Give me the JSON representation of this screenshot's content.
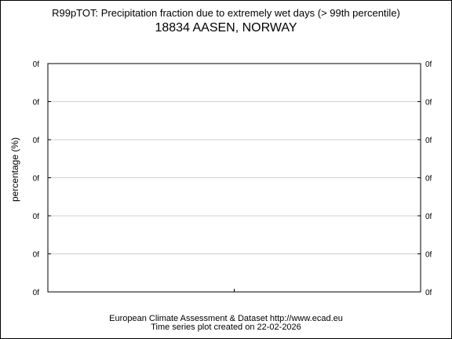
{
  "chart_data": {
    "type": "line",
    "title": "R99pTOT: Precipitation fraction due to extremely wet days (> 99th percentile)",
    "subtitle": "18834 AASEN, NORWAY",
    "xlabel": "",
    "ylabel": "percentage (%)",
    "y_tick_labels": [
      "0f",
      "0f",
      "0f",
      "0f",
      "0f",
      "0f",
      "0f"
    ],
    "x_tick_labels": [],
    "series": [],
    "grid": true,
    "legend": "none"
  },
  "footer": {
    "line1": "European Climate Assessment & Dataset  http://www.ecad.eu",
    "line2": "Time series plot created on 22-02-2026"
  },
  "colors": {
    "grid": "#d0d0d0",
    "axis": "#000000",
    "background": "#ffffff"
  }
}
